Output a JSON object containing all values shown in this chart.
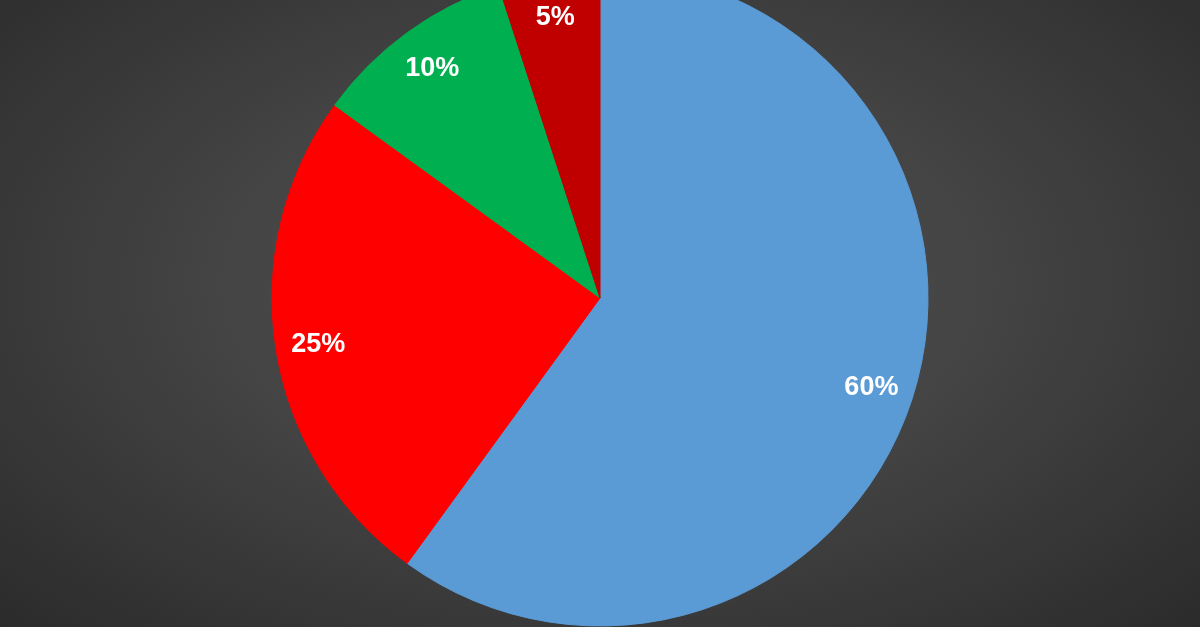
{
  "chart_data": {
    "type": "pie",
    "categories": [
      null,
      null,
      null,
      null
    ],
    "values": [
      60,
      25,
      10,
      5
    ],
    "colors": [
      "#5b9bd5",
      "#ff0000",
      "#00b050",
      "#c00000"
    ],
    "value_labels": [
      "60%",
      "25%",
      "10%",
      "5%"
    ]
  }
}
